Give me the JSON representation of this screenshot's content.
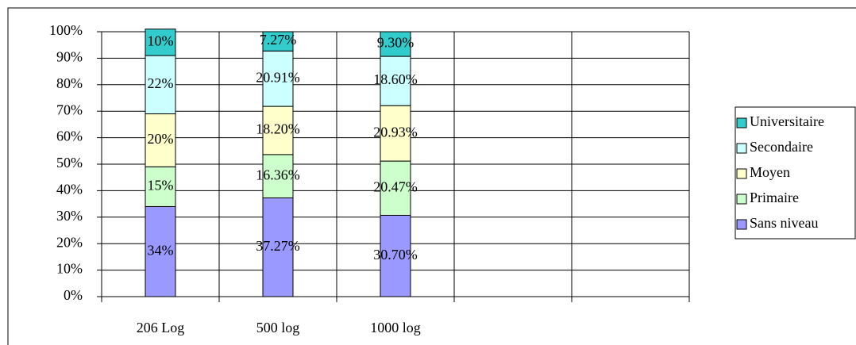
{
  "chart_data": {
    "type": "stacked_bar",
    "categories": [
      "206 Log",
      "500 log",
      "1000 log",
      null,
      null
    ],
    "series": [
      {
        "name": "Sans niveau",
        "color": "#9999ff",
        "values": [
          34,
          37.27,
          30.7,
          null,
          null
        ],
        "value_labels": [
          "34%",
          "37.27%",
          "30.70%",
          null,
          null
        ]
      },
      {
        "name": "Primaire",
        "color": "#ccffcc",
        "values": [
          15,
          16.36,
          20.47,
          null,
          null
        ],
        "value_labels": [
          "15%",
          "16.36%",
          "20.47%",
          null,
          null
        ]
      },
      {
        "name": "Moyen",
        "color": "#ffffcc",
        "values": [
          20,
          18.2,
          20.93,
          null,
          null
        ],
        "value_labels": [
          "20%",
          "18.20%",
          "20.93%",
          null,
          null
        ]
      },
      {
        "name": "Secondaire",
        "color": "#ccffff",
        "values": [
          22,
          20.91,
          18.6,
          null,
          null
        ],
        "value_labels": [
          "22%",
          "20.91%",
          "18.60%",
          null,
          null
        ]
      },
      {
        "name": "Universitaire",
        "color": "#33cccc",
        "values": [
          10,
          7.27,
          9.3,
          null,
          null
        ],
        "value_labels": [
          "10%",
          "7.27%",
          "9.30%",
          null,
          null
        ]
      }
    ],
    "ylim": [
      0,
      100
    ],
    "yticks": [
      {
        "value": 0,
        "label": "0%"
      },
      {
        "value": 10,
        "label": "10%"
      },
      {
        "value": 20,
        "label": "20%"
      },
      {
        "value": 30,
        "label": "30%"
      },
      {
        "value": 40,
        "label": "40%"
      },
      {
        "value": 50,
        "label": "50%"
      },
      {
        "value": 60,
        "label": "60%"
      },
      {
        "value": 70,
        "label": "70%"
      },
      {
        "value": 80,
        "label": "80%"
      },
      {
        "value": 90,
        "label": "90%"
      },
      {
        "value": 100,
        "label": "100%"
      }
    ],
    "grid": true,
    "legend": "right"
  }
}
